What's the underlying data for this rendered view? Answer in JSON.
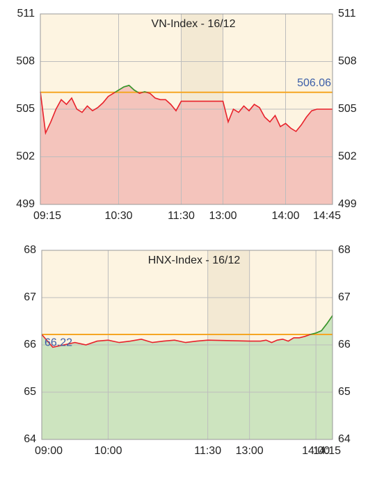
{
  "chart_data": [
    {
      "type": "line",
      "title": "VN-Index - 16/12",
      "x": [
        "09:15",
        "09:20",
        "09:25",
        "09:30",
        "09:35",
        "09:40",
        "09:45",
        "09:50",
        "09:55",
        "10:00",
        "10:05",
        "10:10",
        "10:15",
        "10:20",
        "10:25",
        "10:30",
        "10:35",
        "10:40",
        "10:45",
        "10:50",
        "10:55",
        "11:00",
        "11:05",
        "11:10",
        "11:15",
        "11:20",
        "11:25",
        "11:30",
        "13:00",
        "13:05",
        "13:10",
        "13:15",
        "13:20",
        "13:25",
        "13:30",
        "13:35",
        "13:40",
        "13:45",
        "13:50",
        "13:55",
        "14:00",
        "14:05",
        "14:10",
        "14:15",
        "14:20",
        "14:25",
        "14:30",
        "14:35",
        "14:40",
        "14:45"
      ],
      "values": [
        506.1,
        503.5,
        504.2,
        505.0,
        505.6,
        505.3,
        505.7,
        505.0,
        504.8,
        505.2,
        504.9,
        505.1,
        505.4,
        505.8,
        506.0,
        506.2,
        506.4,
        506.5,
        506.2,
        506.0,
        506.1,
        506.0,
        505.7,
        505.6,
        505.6,
        505.3,
        504.9,
        505.5,
        505.5,
        504.2,
        505.0,
        504.8,
        505.2,
        504.9,
        505.3,
        505.1,
        504.5,
        504.2,
        504.6,
        503.9,
        504.1,
        503.8,
        503.6,
        504.0,
        504.5,
        504.9,
        505.0,
        505.0,
        505.0,
        505.0
      ],
      "reference": 506.06,
      "color": "#e8212a",
      "above_color": "#2ea02e",
      "fill_color": "#f4c4bc",
      "reference_color": "#f5a623",
      "xlim": [
        "09:15",
        "14:45"
      ],
      "xticks": [
        "09:15",
        "10:30",
        "11:30",
        "13:00",
        "14:00",
        "14:45"
      ],
      "lunch_break": [
        "11:30",
        "13:00"
      ],
      "ylim": [
        499,
        511
      ],
      "yticks": [
        499,
        502,
        505,
        508,
        511
      ],
      "grid": true
    },
    {
      "type": "line",
      "title": "HNX-Index - 16/12",
      "x": [
        "09:00",
        "09:10",
        "09:20",
        "09:30",
        "09:40",
        "09:50",
        "10:00",
        "10:10",
        "10:20",
        "10:30",
        "10:40",
        "10:50",
        "11:00",
        "11:10",
        "11:20",
        "11:30",
        "13:00",
        "13:05",
        "13:10",
        "13:15",
        "13:20",
        "13:25",
        "13:30",
        "13:35",
        "13:40",
        "13:45",
        "13:50",
        "13:55",
        "14:00",
        "14:05",
        "14:10",
        "14:15"
      ],
      "values": [
        66.22,
        65.95,
        66.0,
        66.05,
        66.0,
        66.08,
        66.1,
        66.05,
        66.08,
        66.12,
        66.05,
        66.08,
        66.1,
        66.05,
        66.08,
        66.1,
        66.08,
        66.08,
        66.08,
        66.1,
        66.05,
        66.1,
        66.12,
        66.08,
        66.15,
        66.15,
        66.18,
        66.22,
        66.25,
        66.3,
        66.45,
        66.62
      ],
      "reference": 66.22,
      "color": "#e8212a",
      "above_color": "#2ea02e",
      "fill_color": "#cde4bf",
      "reference_color": "#f5a623",
      "xlim": [
        "09:00",
        "14:15"
      ],
      "xticks": [
        "09:00",
        "10:00",
        "11:30",
        "13:00",
        "14:00",
        "14:15"
      ],
      "lunch_break": [
        "11:30",
        "13:00"
      ],
      "ylim": [
        64,
        68
      ],
      "yticks": [
        64,
        65,
        66,
        67,
        68
      ],
      "grid": true
    }
  ]
}
